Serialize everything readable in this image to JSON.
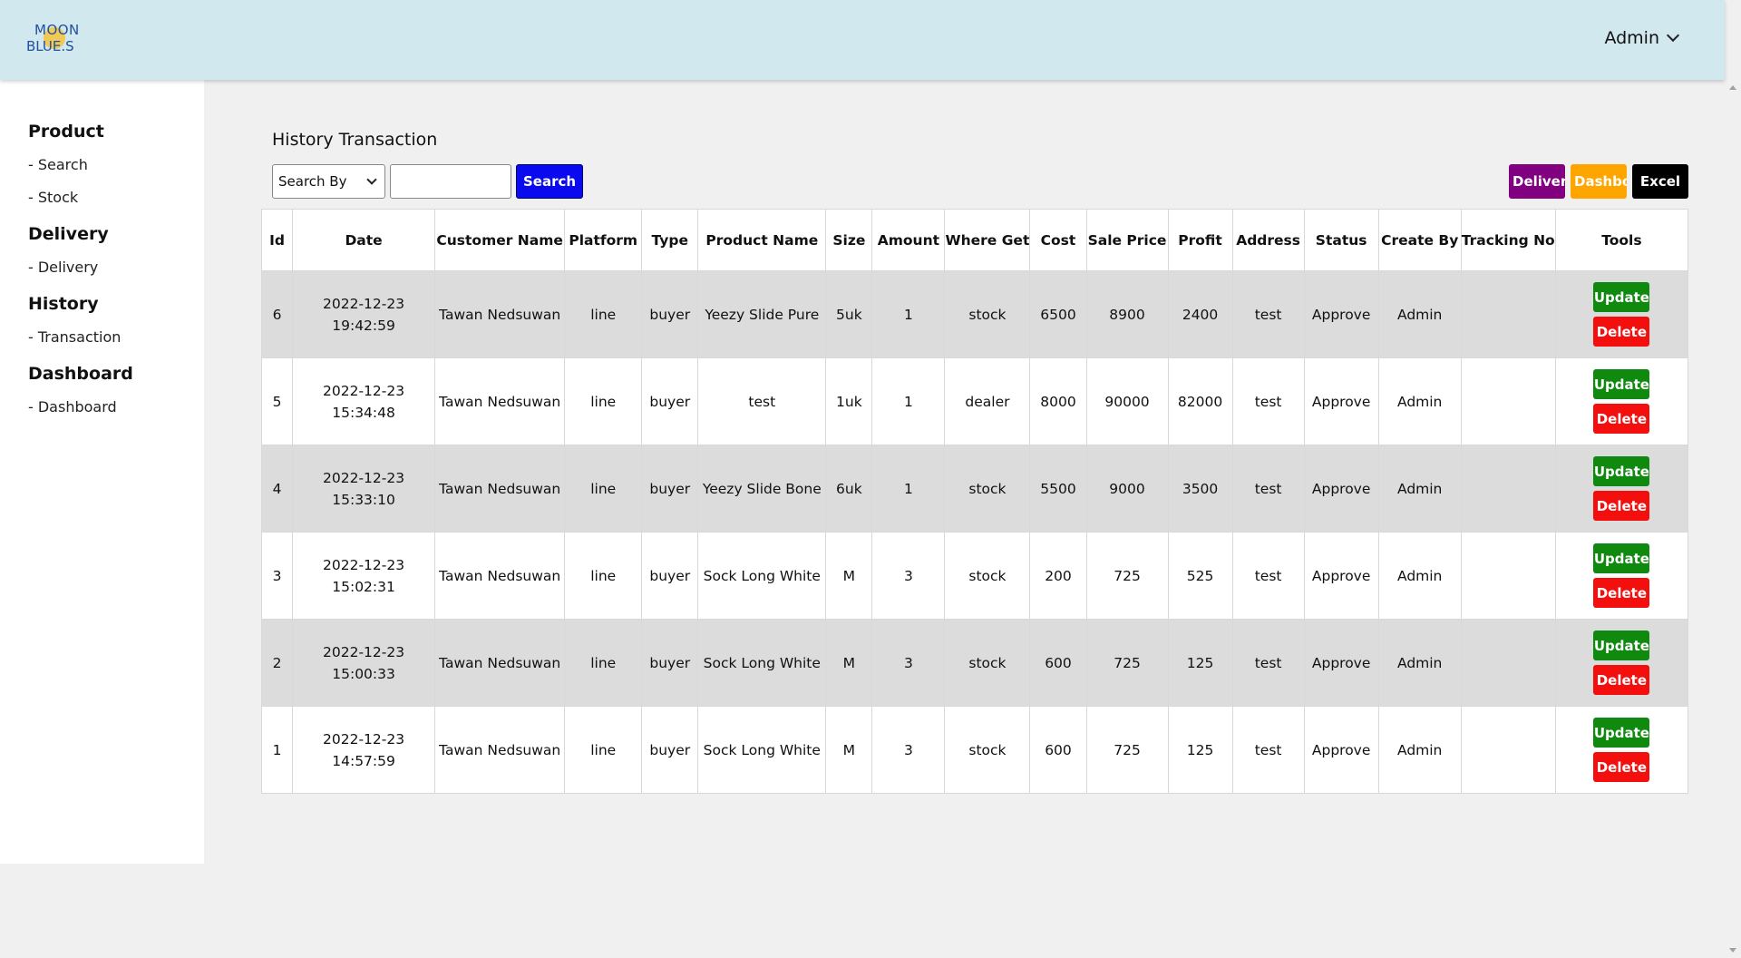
{
  "header": {
    "logo_line1": "MOON",
    "logo_line2": "BLUE.S",
    "user_label": "Admin"
  },
  "sidebar": {
    "sections": [
      {
        "title": "Product",
        "items": [
          "- Search",
          "- Stock"
        ]
      },
      {
        "title": "Delivery",
        "items": [
          "- Delivery"
        ]
      },
      {
        "title": "History",
        "items": [
          "- Transaction"
        ]
      },
      {
        "title": "Dashboard",
        "items": [
          "- Dashboard"
        ]
      }
    ]
  },
  "main": {
    "title": "History Transaction",
    "search": {
      "select_value": "Search By",
      "input_value": "",
      "button_label": "Search"
    },
    "actions": {
      "delivery_label": "Delivery",
      "dashboard_label": "Dashboard",
      "excel_label": "Excel"
    },
    "table": {
      "columns": [
        "Id",
        "Date",
        "Customer Name",
        "Platform",
        "Type",
        "Product Name",
        "Size",
        "Amount",
        "Where Get",
        "Cost",
        "Sale Price",
        "Profit",
        "Address",
        "Status",
        "Create By",
        "Tracking No",
        "Tools"
      ],
      "update_label": "Update",
      "delete_label": "Delete",
      "rows": [
        [
          "6",
          "2022-12-23 19:42:59",
          "Tawan Nedsuwan",
          "line",
          "buyer",
          "Yeezy Slide Pure",
          "5uk",
          "1",
          "stock",
          "6500",
          "8900",
          "2400",
          "test",
          "Approve",
          "Admin",
          ""
        ],
        [
          "5",
          "2022-12-23 15:34:48",
          "Tawan Nedsuwan",
          "line",
          "buyer",
          "test",
          "1uk",
          "1",
          "dealer",
          "8000",
          "90000",
          "82000",
          "test",
          "Approve",
          "Admin",
          ""
        ],
        [
          "4",
          "2022-12-23 15:33:10",
          "Tawan Nedsuwan",
          "line",
          "buyer",
          "Yeezy Slide Bone",
          "6uk",
          "1",
          "stock",
          "5500",
          "9000",
          "3500",
          "test",
          "Approve",
          "Admin",
          ""
        ],
        [
          "3",
          "2022-12-23 15:02:31",
          "Tawan Nedsuwan",
          "line",
          "buyer",
          "Sock Long White",
          "M",
          "3",
          "stock",
          "200",
          "725",
          "525",
          "test",
          "Approve",
          "Admin",
          ""
        ],
        [
          "2",
          "2022-12-23 15:00:33",
          "Tawan Nedsuwan",
          "line",
          "buyer",
          "Sock Long White",
          "M",
          "3",
          "stock",
          "600",
          "725",
          "125",
          "test",
          "Approve",
          "Admin",
          ""
        ],
        [
          "1",
          "2022-12-23 14:57:59",
          "Tawan Nedsuwan",
          "line",
          "buyer",
          "Sock Long White",
          "M",
          "3",
          "stock",
          "600",
          "725",
          "125",
          "test",
          "Approve",
          "Admin",
          ""
        ]
      ]
    }
  },
  "colors": {
    "header_bg": "#d1e8ef",
    "search_button": "#0a0aef",
    "delivery_button": "#800080",
    "dashboard_button": "#ffa500",
    "excel_button": "#000000",
    "update_button": "#0f8a0f",
    "delete_button": "#f40f0f"
  }
}
